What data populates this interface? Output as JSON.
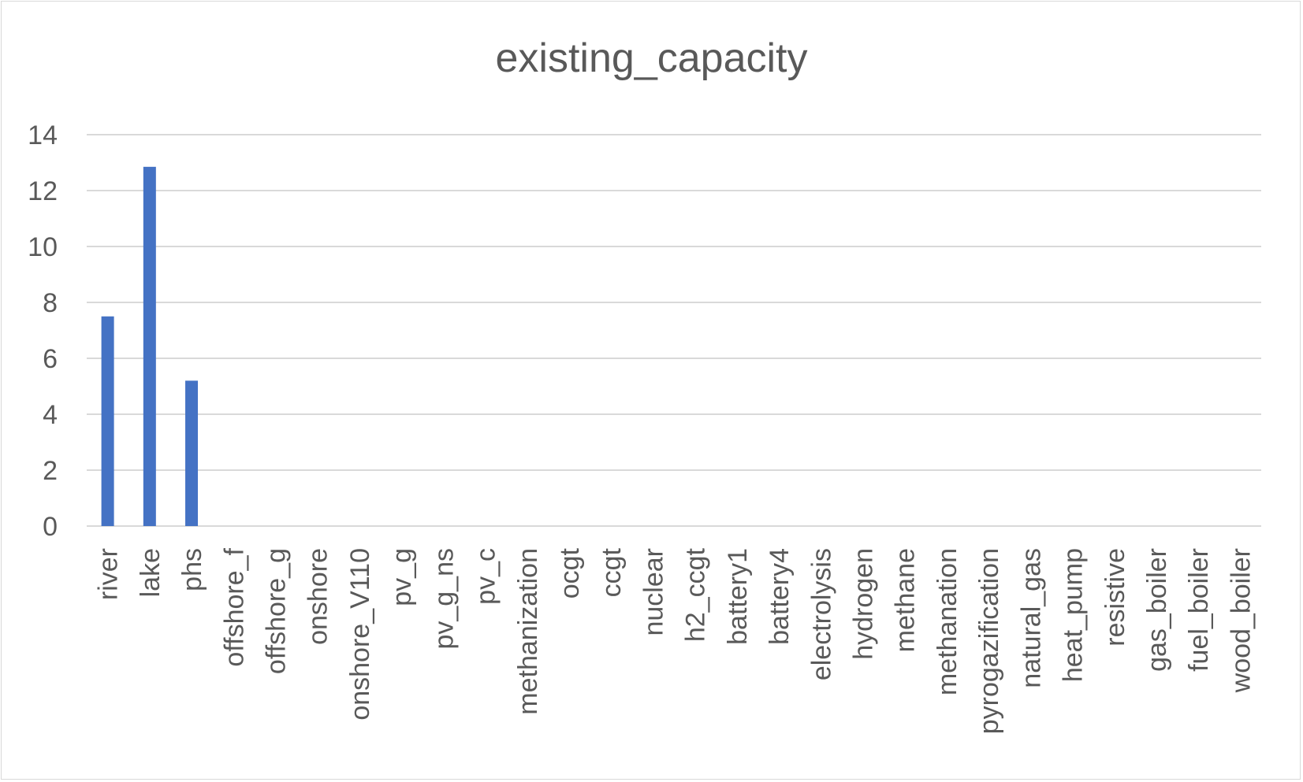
{
  "chart_data": {
    "type": "bar",
    "title": "existing_capacity",
    "xlabel": "",
    "ylabel": "",
    "ylim": [
      0,
      14
    ],
    "yticks": [
      0,
      2,
      4,
      6,
      8,
      10,
      12,
      14
    ],
    "grid": true,
    "legend": "none",
    "bar_color": "#4472c4",
    "gridline_color": "#d9d9d9",
    "categories": [
      "river",
      "lake",
      "phs",
      "offshore_f",
      "offshore_g",
      "onshore",
      "onshore_V110",
      "pv_g",
      "pv_g_ns",
      "pv_c",
      "methanization",
      "ocgt",
      "ccgt",
      "nuclear",
      "h2_ccgt",
      "battery1",
      "battery4",
      "electrolysis",
      "hydrogen",
      "methane",
      "methanation",
      "pyrogazification",
      "natural_gas",
      "heat_pump",
      "resistive",
      "gas_boiler",
      "fuel_boiler",
      "wood_boiler"
    ],
    "values": [
      7.5,
      12.85,
      5.2,
      0,
      0,
      0,
      0,
      0,
      0,
      0,
      0,
      0,
      0,
      0,
      0,
      0,
      0,
      0,
      0,
      0,
      0,
      0,
      0,
      0,
      0,
      0,
      0,
      0
    ]
  }
}
